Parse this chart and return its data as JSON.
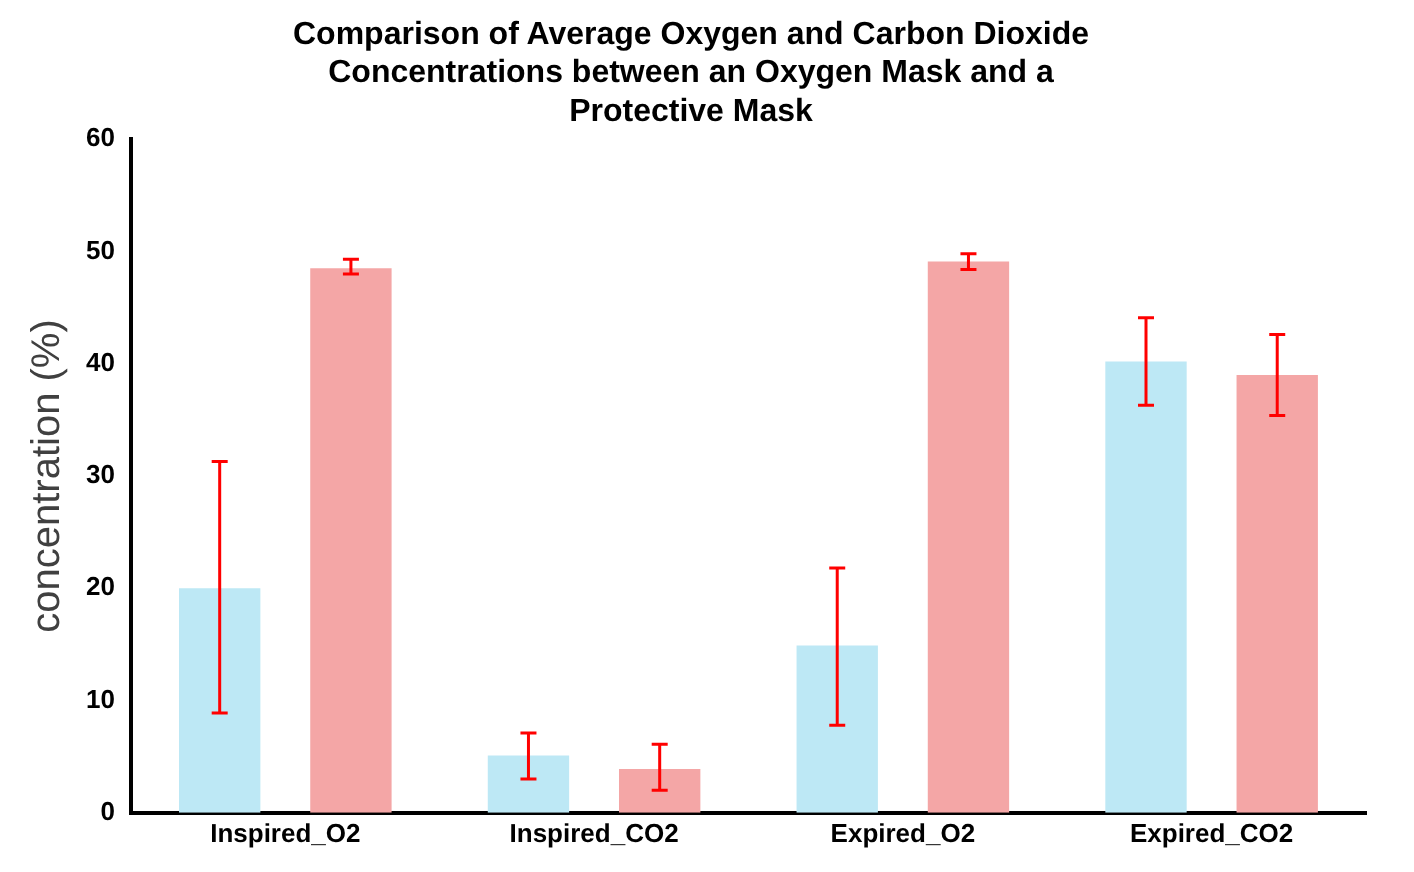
{
  "chart_data": {
    "type": "bar",
    "title": "Comparison of Average Oxygen and Carbon Dioxide Concentrations between an Oxygen Mask and a Protective Mask",
    "ylabel": "concentration (%)",
    "categories": [
      "Inspired_O2",
      "Inspired_CO2",
      "Expired_O2",
      "Expired_CO2"
    ],
    "series": [
      {
        "color": "#bde8f5",
        "values": [
          20.0,
          5.1,
          14.9,
          40.2
        ],
        "errors": [
          [
            8.9,
            31.3
          ],
          [
            3.0,
            7.1
          ],
          [
            7.8,
            21.8
          ],
          [
            36.3,
            44.1
          ]
        ]
      },
      {
        "color": "#f4a6a6",
        "values": [
          48.5,
          3.9,
          49.1,
          39.0
        ],
        "errors": [
          [
            48.0,
            49.3
          ],
          [
            2.0,
            6.1
          ],
          [
            48.4,
            49.8
          ],
          [
            35.4,
            42.6
          ]
        ]
      }
    ],
    "ylim": [
      0,
      60
    ],
    "yticks": [
      0,
      10,
      20,
      30,
      40,
      50,
      60
    ],
    "grid": false,
    "legend": false
  }
}
